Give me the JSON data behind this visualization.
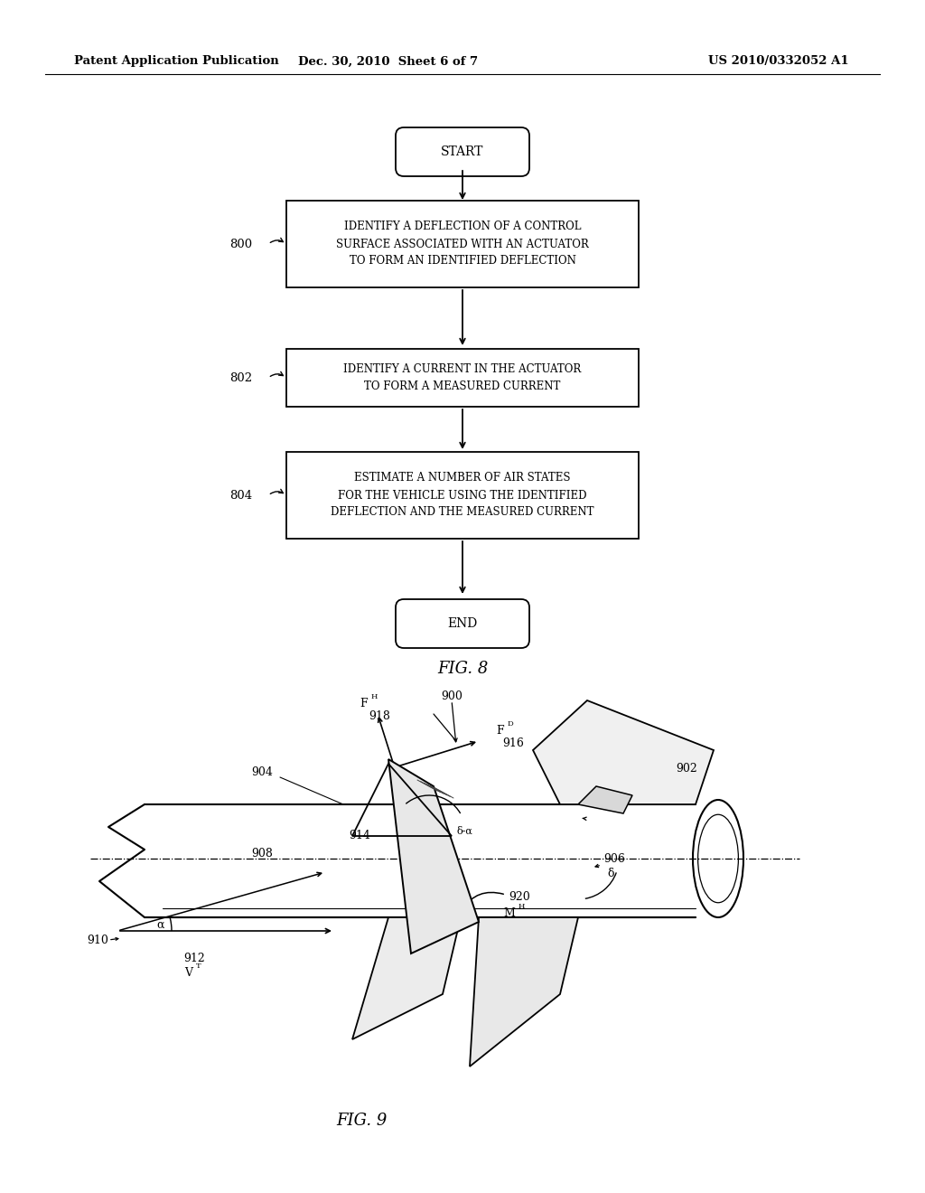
{
  "bg_color": "#ffffff",
  "header_left": "Patent Application Publication",
  "header_center": "Dec. 30, 2010  Sheet 6 of 7",
  "header_right": "US 2010/0332052 A1",
  "fig8_label": "FIG. 8",
  "fig9_label": "FIG. 9",
  "flowchart": {
    "start_label": "START",
    "end_label": "END",
    "box1_text": "IDENTIFY A DEFLECTION OF A CONTROL\nSURFACE ASSOCIATED WITH AN ACTUATOR\nTO FORM AN IDENTIFIED DEFLECTION",
    "box2_text": "IDENTIFY A CURRENT IN THE ACTUATOR\nTO FORM A MEASURED CURRENT",
    "box3_text": "ESTIMATE A NUMBER OF AIR STATES\nFOR THE VEHICLE USING THE IDENTIFIED\nDEFLECTION AND THE MEASURED CURRENT",
    "label1": "800",
    "label2": "802",
    "label3": "804"
  }
}
